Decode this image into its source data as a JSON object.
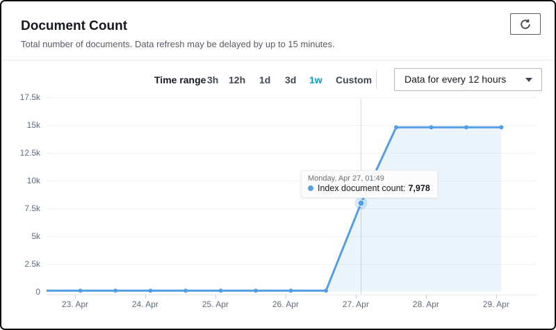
{
  "header": {
    "title": "Document Count",
    "subtitle": "Total number of documents. Data refresh may be delayed by up to 15 minutes."
  },
  "icons": {
    "refresh": "refresh-icon",
    "dropdown_caret": "caret-down-icon",
    "series_dot": "series-dot-icon"
  },
  "controls": {
    "time_range_label": "Time range",
    "options": [
      {
        "label": "3h",
        "selected": false
      },
      {
        "label": "12h",
        "selected": false
      },
      {
        "label": "1d",
        "selected": false
      },
      {
        "label": "3d",
        "selected": false
      },
      {
        "label": "1w",
        "selected": true
      },
      {
        "label": "Custom",
        "selected": false
      }
    ],
    "interval_select": {
      "value": "Data for every 12 hours"
    }
  },
  "colors": {
    "accent_selected": "#00a1c9",
    "series_line": "#539fe5",
    "series_fill": "rgba(83,159,229,0.10)",
    "crosshair": "#d3d9de",
    "text_primary": "#16191f",
    "text_secondary": "#545b64",
    "axis_label": "#5f6b7a"
  },
  "chart_data": {
    "type": "line",
    "title": "Document Count",
    "grid": true,
    "legend": "none",
    "x_domain_hours": [
      -9.74,
      157.84
    ],
    "y_domain": [
      0,
      17500
    ],
    "x_ticks": {
      "labels": [
        "23. Apr",
        "24. Apr",
        "25. Apr",
        "26. Apr",
        "27. Apr",
        "28. Apr",
        "29. Apr"
      ],
      "hours": [
        0,
        24,
        48,
        72,
        96,
        120,
        144
      ]
    },
    "y_ticks": {
      "labels": [
        "0",
        "2.5k",
        "5k",
        "7.5k",
        "10k",
        "12.5k",
        "15k",
        "17.5k"
      ],
      "values": [
        0,
        2500,
        5000,
        7500,
        10000,
        12500,
        15000,
        17500
      ]
    },
    "series": [
      {
        "name": "Index document count",
        "color": "#539fe5",
        "points": [
          {
            "time": "Apr 22, 13:49",
            "t_hours": -10.18,
            "value": 100
          },
          {
            "time": "Apr 23, 01:49",
            "t_hours": 1.82,
            "value": 100
          },
          {
            "time": "Apr 23, 13:49",
            "t_hours": 13.82,
            "value": 100
          },
          {
            "time": "Apr 24, 01:49",
            "t_hours": 25.82,
            "value": 100
          },
          {
            "time": "Apr 24, 13:49",
            "t_hours": 37.82,
            "value": 100
          },
          {
            "time": "Apr 25, 01:49",
            "t_hours": 49.82,
            "value": 100
          },
          {
            "time": "Apr 25, 13:49",
            "t_hours": 61.82,
            "value": 100
          },
          {
            "time": "Apr 26, 01:49",
            "t_hours": 73.82,
            "value": 100
          },
          {
            "time": "Apr 26, 13:49",
            "t_hours": 85.82,
            "value": 100
          },
          {
            "time": "Apr 27, 01:49",
            "t_hours": 97.82,
            "value": 7978
          },
          {
            "time": "Apr 27, 13:49",
            "t_hours": 109.82,
            "value": 14800
          },
          {
            "time": "Apr 28, 01:49",
            "t_hours": 121.82,
            "value": 14800
          },
          {
            "time": "Apr 28, 13:49",
            "t_hours": 133.82,
            "value": 14800
          },
          {
            "time": "Apr 29, 01:49",
            "t_hours": 145.82,
            "value": 14800
          }
        ]
      }
    ],
    "tooltip": {
      "date_line": "Monday, Apr 27, 01:49",
      "series_label": "Index document count:",
      "value": "7,978",
      "point_index": 9
    }
  }
}
